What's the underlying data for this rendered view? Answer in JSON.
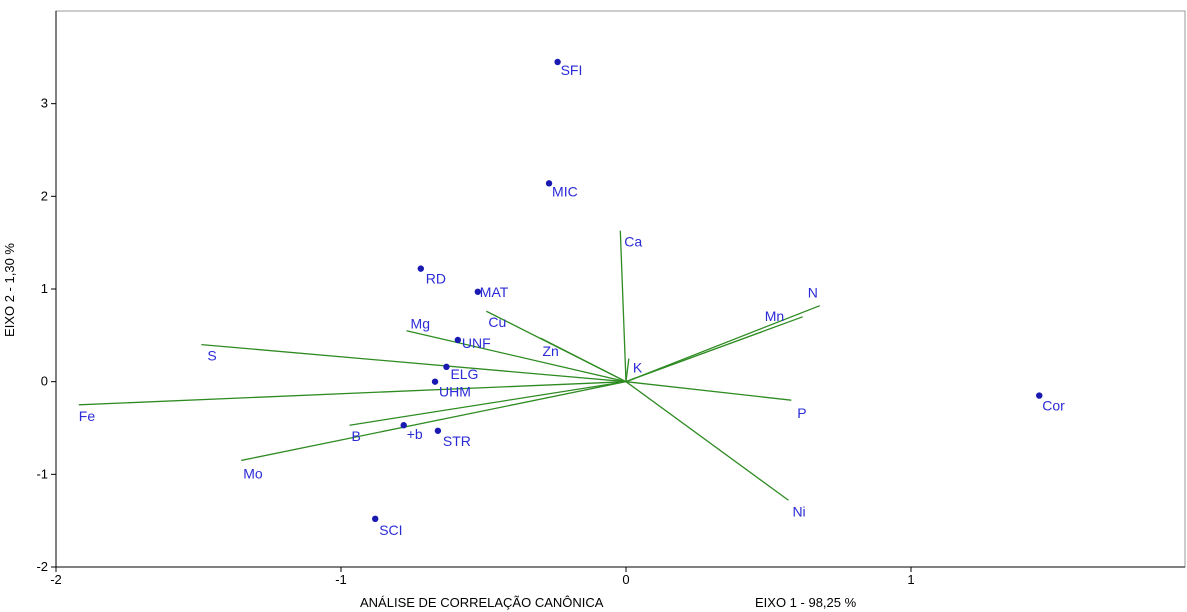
{
  "chart_data": {
    "type": "scatter",
    "subtype": "biplot",
    "title": "",
    "xlabel": "ANÁLISE DE CORRELAÇÃO CANÔNICA",
    "xlabel_secondary": "EIXO 1 - 98,25 %",
    "ylabel": "EIXO 2 - 1,30 %",
    "xlim": [
      -2,
      2
    ],
    "ylim": [
      -2,
      4
    ],
    "xticks": [
      -2,
      -1,
      0,
      1
    ],
    "yticks": [
      -2,
      -1,
      0,
      1,
      2,
      3
    ],
    "grid": false,
    "legend": "none",
    "colors": {
      "points": "#1a1ab3",
      "labels": "#2b2bd6",
      "vectors": "#2e8b22",
      "axes": "#000000",
      "frame": "#999999"
    },
    "points": [
      {
        "label": "SFI",
        "x": -0.24,
        "y": 3.45
      },
      {
        "label": "MIC",
        "x": -0.27,
        "y": 2.14
      },
      {
        "label": "RD",
        "x": -0.72,
        "y": 1.22
      },
      {
        "label": "MAT",
        "x": -0.52,
        "y": 0.97
      },
      {
        "label": "UNF",
        "x": -0.59,
        "y": 0.45
      },
      {
        "label": "ELG",
        "x": -0.63,
        "y": 0.16
      },
      {
        "label": "UHM",
        "x": -0.67,
        "y": 0.0
      },
      {
        "label": "+b",
        "x": -0.78,
        "y": -0.47
      },
      {
        "label": "STR",
        "x": -0.66,
        "y": -0.53
      },
      {
        "label": "SCI",
        "x": -0.88,
        "y": -1.48
      },
      {
        "label": "Cor",
        "x": 1.45,
        "y": -0.15
      }
    ],
    "vectors": [
      {
        "label": "Fe",
        "x": -1.92,
        "y": -0.25
      },
      {
        "label": "S",
        "x": -1.49,
        "y": 0.4
      },
      {
        "label": "Mo",
        "x": -1.35,
        "y": -0.85
      },
      {
        "label": "B",
        "x": -0.97,
        "y": -0.47
      },
      {
        "label": "Mg",
        "x": -0.77,
        "y": 0.55
      },
      {
        "label": "Cu",
        "x": -0.49,
        "y": 0.76
      },
      {
        "label": "Zn",
        "x": -0.3,
        "y": 0.47
      },
      {
        "label": "Ca",
        "x": -0.02,
        "y": 1.63
      },
      {
        "label": "K",
        "x": 0.01,
        "y": 0.25
      },
      {
        "label": "N",
        "x": 0.68,
        "y": 0.82
      },
      {
        "label": "Mn",
        "x": 0.62,
        "y": 0.7
      },
      {
        "label": "P",
        "x": 0.58,
        "y": -0.2
      },
      {
        "label": "Ni",
        "x": 0.57,
        "y": -1.28
      }
    ]
  }
}
